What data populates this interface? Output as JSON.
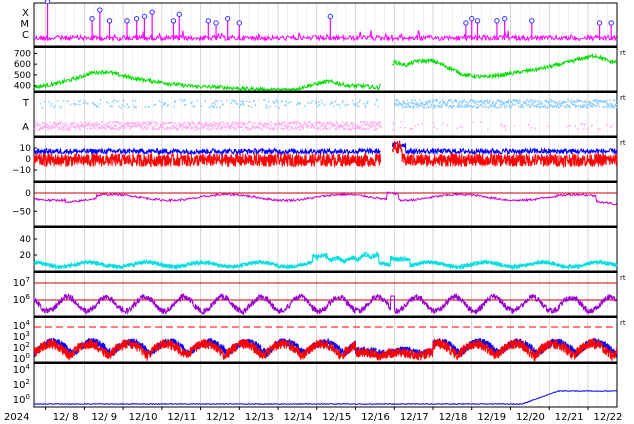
{
  "chart_data": [
    {
      "type": "line",
      "panel": "xray-flare-class",
      "ylabels": [
        "X",
        "M",
        "C"
      ],
      "color": "#ff00ff",
      "marker_color": "#3333ff",
      "flare_markers_day": [
        8.05,
        9.2,
        9.4,
        9.65,
        10.1,
        10.35,
        10.55,
        10.75,
        11.3,
        11.45,
        12.2,
        12.4,
        12.7,
        13.0,
        15.35,
        18.85,
        19.0,
        19.15,
        19.65,
        19.85,
        20.55,
        22.3,
        22.6
      ],
      "flare_heights": [
        0.85,
        0.45,
        0.65,
        0.4,
        0.4,
        0.45,
        0.5,
        0.6,
        0.4,
        0.55,
        0.4,
        0.35,
        0.45,
        0.35,
        0.5,
        0.35,
        0.45,
        0.4,
        0.4,
        0.45,
        0.4,
        0.35,
        0.35
      ]
    },
    {
      "type": "line",
      "panel": "solar-wind-speed",
      "ticks": [
        "700",
        "600",
        "500",
        "400"
      ],
      "ylim": [
        350,
        760
      ],
      "color": "#00dd00",
      "right_tag": "rt",
      "gap": [
        16.65,
        16.95
      ],
      "keypoints": [
        [
          7.8,
          390
        ],
        [
          8.3,
          420
        ],
        [
          8.8,
          470
        ],
        [
          9.2,
          520
        ],
        [
          9.6,
          530
        ],
        [
          10.0,
          490
        ],
        [
          10.4,
          460
        ],
        [
          10.8,
          440
        ],
        [
          11.2,
          420
        ],
        [
          11.6,
          400
        ],
        [
          12.0,
          390
        ],
        [
          12.5,
          385
        ],
        [
          13.0,
          375
        ],
        [
          13.5,
          365
        ],
        [
          14.0,
          360
        ],
        [
          14.4,
          365
        ],
        [
          14.8,
          400
        ],
        [
          15.3,
          440
        ],
        [
          15.8,
          400
        ],
        [
          16.2,
          395
        ],
        [
          16.6,
          380
        ],
        [
          17.0,
          620
        ],
        [
          17.3,
          590
        ],
        [
          17.6,
          630
        ],
        [
          18.0,
          630
        ],
        [
          18.4,
          570
        ],
        [
          18.8,
          500
        ],
        [
          19.3,
          480
        ],
        [
          19.8,
          500
        ],
        [
          20.3,
          530
        ],
        [
          20.8,
          560
        ],
        [
          21.3,
          600
        ],
        [
          21.8,
          650
        ],
        [
          22.2,
          680
        ],
        [
          22.6,
          620
        ]
      ]
    },
    {
      "type": "scatter",
      "panel": "imf-direction",
      "ylabels": [
        "T",
        "A"
      ],
      "colors": [
        "#88ccff",
        "#ffaaee"
      ],
      "right_tag": "rt",
      "gap": [
        16.65,
        16.95
      ]
    },
    {
      "type": "line",
      "panel": "imf-components",
      "ticks": [
        "10",
        "0",
        "−10"
      ],
      "ylim": [
        -20,
        20
      ],
      "colors": [
        "#0000ff",
        "#ff0000"
      ],
      "right_tag": "rt",
      "gap": [
        16.65,
        16.95
      ]
    },
    {
      "type": "line",
      "panel": "dst-index",
      "ticks": [
        "0",
        "−50"
      ],
      "ylim": [
        -90,
        30
      ],
      "color": "#cc00cc",
      "baseline": 0,
      "baseline_color": "#cc0000"
    },
    {
      "type": "line",
      "panel": "ae-index",
      "ticks": [
        "40",
        "20"
      ],
      "ylim": [
        0,
        55
      ],
      "color": "#00dddd"
    },
    {
      "type": "line",
      "panel": "electron-flux",
      "ticks": [
        {
          "base": "10",
          "exp": "7"
        },
        {
          "base": "10",
          "exp": "6"
        }
      ],
      "color": "#9900cc",
      "threshold_color": "#cc0000",
      "right_tag": "rt"
    },
    {
      "type": "line",
      "panel": "proton-flux",
      "ticks": [
        {
          "base": "10",
          "exp": "4"
        },
        {
          "base": "10",
          "exp": "3"
        },
        {
          "base": "10",
          "exp": "2"
        },
        {
          "base": "10",
          "exp": "0"
        }
      ],
      "colors": [
        "#ff0000",
        "#0000ff"
      ],
      "threshold_color": "#ff0000",
      "right_tag": "rt"
    },
    {
      "type": "line",
      "panel": "high-energy-particles",
      "ticks": [
        {
          "base": "10",
          "exp": "4"
        },
        {
          "base": "10",
          "exp": "2"
        },
        {
          "base": "10",
          "exp": "0"
        }
      ],
      "color": "#0000ff"
    }
  ],
  "x_axis": {
    "year_label": "2024",
    "range_days": [
      7.7,
      22.75
    ],
    "ticks": [
      {
        "day": 8,
        "label": "12/ 8"
      },
      {
        "day": 9,
        "label": "12/ 9"
      },
      {
        "day": 10,
        "label": "12/10"
      },
      {
        "day": 11,
        "label": "12/11"
      },
      {
        "day": 12,
        "label": "12/12"
      },
      {
        "day": 13,
        "label": "12/13"
      },
      {
        "day": 14,
        "label": "12/14"
      },
      {
        "day": 15,
        "label": "12/15"
      },
      {
        "day": 16,
        "label": "12/16"
      },
      {
        "day": 17,
        "label": "12/17"
      },
      {
        "day": 18,
        "label": "12/18"
      },
      {
        "day": 19,
        "label": "12/19"
      },
      {
        "day": 20,
        "label": "12/20"
      },
      {
        "day": 21,
        "label": "12/21"
      },
      {
        "day": 22,
        "label": "12/22"
      }
    ]
  }
}
